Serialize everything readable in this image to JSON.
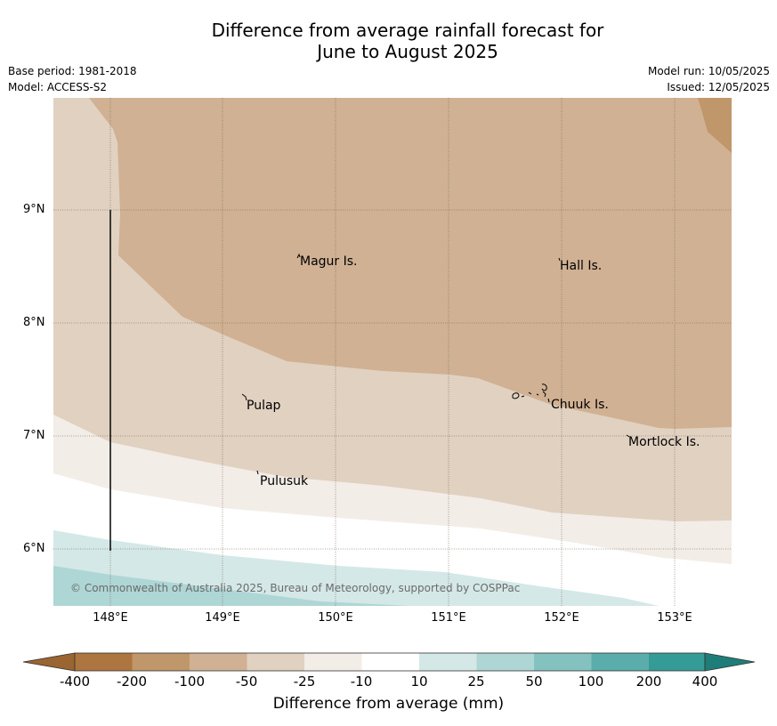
{
  "title": {
    "line1": "Difference from average rainfall forecast for",
    "line2": "June to August 2025"
  },
  "meta": {
    "base_period": "Base period: 1981-2018",
    "model": "Model: ACCESS-S2",
    "model_run": "Model run: 10/05/2025",
    "issued": "Issued: 12/05/2025"
  },
  "axes": {
    "lat_labels": [
      "9°N",
      "8°N",
      "7°N",
      "6°N"
    ],
    "lon_labels": [
      "148°E",
      "149°E",
      "150°E",
      "151°E",
      "152°E",
      "153°E"
    ]
  },
  "places": [
    {
      "name": "Magur Is."
    },
    {
      "name": "Hall Is."
    },
    {
      "name": "Pulap"
    },
    {
      "name": "Chuuk Is."
    },
    {
      "name": "Mortlock Is."
    },
    {
      "name": "Pulusuk"
    }
  ],
  "credit": "© Commonwealth of Australia 2025, Bureau of Meteorology, supported by COSPPac",
  "colorbar": {
    "title": "Difference from average (mm)",
    "ticks": [
      "-400",
      "-200",
      "-100",
      "-50",
      "-25",
      "-10",
      "10",
      "25",
      "50",
      "100",
      "200",
      "400"
    ],
    "colors": {
      "lt_m400": "#9a6530",
      "m400_m200": "#ad753f",
      "m200_m100": "#c0976a",
      "m100_m50": "#d0b193",
      "m50_m25": "#e1d1c1",
      "m25_m10": "#f3ede8",
      "m10_10": "#ffffff",
      "10_25": "#d4e8e7",
      "25_50": "#aed6d5",
      "50_100": "#84c2c0",
      "100_200": "#5aadab",
      "200_400": "#359b97",
      "gt_400": "#1f7d79"
    }
  }
}
